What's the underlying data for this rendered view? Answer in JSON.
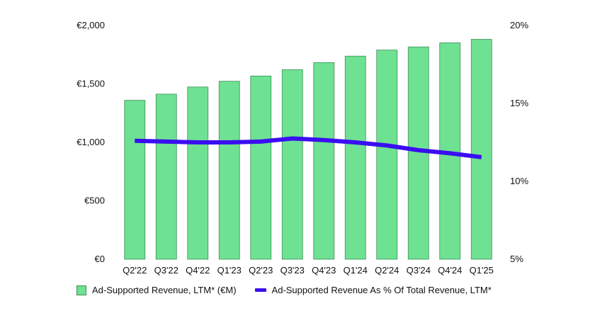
{
  "chart_data": {
    "type": "bar",
    "title": "",
    "categories": [
      "Q2'22",
      "Q3'22",
      "Q4'22",
      "Q1'23",
      "Q2'23",
      "Q3'23",
      "Q4'23",
      "Q1'24",
      "Q2'24",
      "Q3'24",
      "Q4'24",
      "Q1'25"
    ],
    "series": [
      {
        "name": "Ad-Supported Revenue, LTM* (€M)",
        "type": "bar",
        "axis": "left",
        "color": "#6ee193",
        "values": [
          1360,
          1413,
          1474,
          1523,
          1568,
          1622,
          1683,
          1738,
          1790,
          1817,
          1852,
          1882
        ]
      },
      {
        "name": "Ad-Supported Revenue As % Of Total Revenue, LTM*",
        "type": "line",
        "axis": "right",
        "color": "#3a0ef0",
        "values": [
          12.6,
          12.55,
          12.5,
          12.5,
          12.55,
          12.75,
          12.65,
          12.5,
          12.3,
          12.0,
          11.8,
          11.55
        ]
      }
    ],
    "y_left": {
      "ylim": [
        0,
        2000
      ],
      "ticks": [
        0,
        500,
        1000,
        1500,
        2000
      ],
      "tick_labels": [
        "€0",
        "€500",
        "€1,000",
        "€1,500",
        "€2,000"
      ]
    },
    "y_right": {
      "ylim": [
        5,
        20
      ],
      "ticks": [
        5,
        10,
        15,
        20
      ],
      "tick_labels": [
        "5%",
        "10%",
        "15%",
        "20%"
      ]
    },
    "xlabel": "",
    "ylabel": "",
    "grid": false,
    "legend_position": "bottom-left"
  }
}
